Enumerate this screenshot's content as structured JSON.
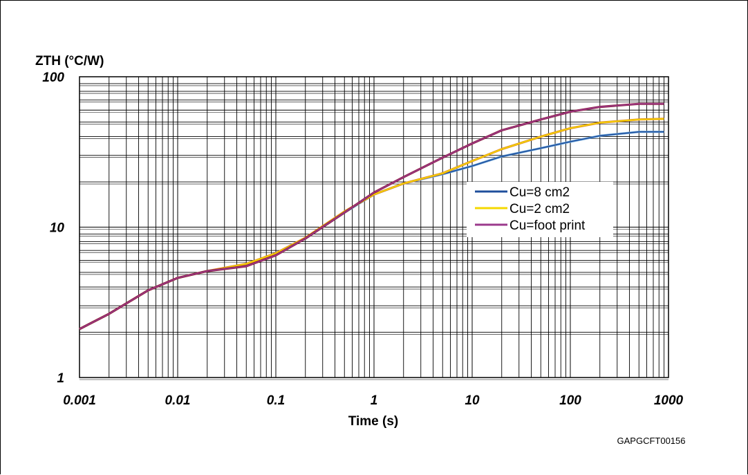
{
  "chart_data": {
    "type": "line",
    "title": "",
    "ylabel": "ZTH (°C/W)",
    "xlabel": "Time (s)",
    "xscale": "log",
    "yscale": "log",
    "xlim": [
      0.001,
      1000
    ],
    "ylim": [
      1,
      100
    ],
    "x_ticks": [
      "0.001",
      "0.01",
      "0.1",
      "1",
      "10",
      "100",
      "1000"
    ],
    "y_ticks": [
      "1",
      "10",
      "100"
    ],
    "grid": true,
    "legend_position": "center-right",
    "series": [
      {
        "name": "Cu=8 cm2",
        "color": "#1f4f9c",
        "x": [
          0.001,
          0.002,
          0.005,
          0.01,
          0.02,
          0.05,
          0.1,
          0.2,
          0.5,
          1,
          2,
          5,
          10,
          20,
          50,
          100,
          200,
          500,
          900
        ],
        "y": [
          2.1,
          2.65,
          3.8,
          4.6,
          5.1,
          5.6,
          6.6,
          8.4,
          12.5,
          16.5,
          19.5,
          22.5,
          25.5,
          29.5,
          33.5,
          37,
          40.5,
          43,
          43
        ]
      },
      {
        "name": "Cu=2 cm2",
        "color": "#f5d800",
        "x": [
          0.001,
          0.002,
          0.005,
          0.01,
          0.02,
          0.05,
          0.1,
          0.2,
          0.5,
          1,
          2,
          5,
          10,
          20,
          50,
          100,
          200,
          500,
          900
        ],
        "y": [
          2.1,
          2.65,
          3.8,
          4.6,
          5.1,
          5.7,
          6.7,
          8.5,
          12.7,
          16.5,
          19.5,
          22.8,
          27.5,
          33,
          40,
          45.5,
          49.5,
          52,
          52.5
        ]
      },
      {
        "name": "Cu=foot print",
        "color": "#9b3a8c",
        "x": [
          0.001,
          0.002,
          0.005,
          0.01,
          0.02,
          0.05,
          0.1,
          0.2,
          0.5,
          1,
          2,
          5,
          10,
          20,
          50,
          100,
          200,
          500,
          900
        ],
        "y": [
          2.1,
          2.65,
          3.8,
          4.6,
          5.1,
          5.5,
          6.5,
          8.4,
          12.5,
          17,
          21.5,
          29,
          36,
          44,
          52,
          58.5,
          63,
          66,
          66
        ]
      }
    ],
    "annotations": [
      "GAPGCFT00156"
    ]
  }
}
